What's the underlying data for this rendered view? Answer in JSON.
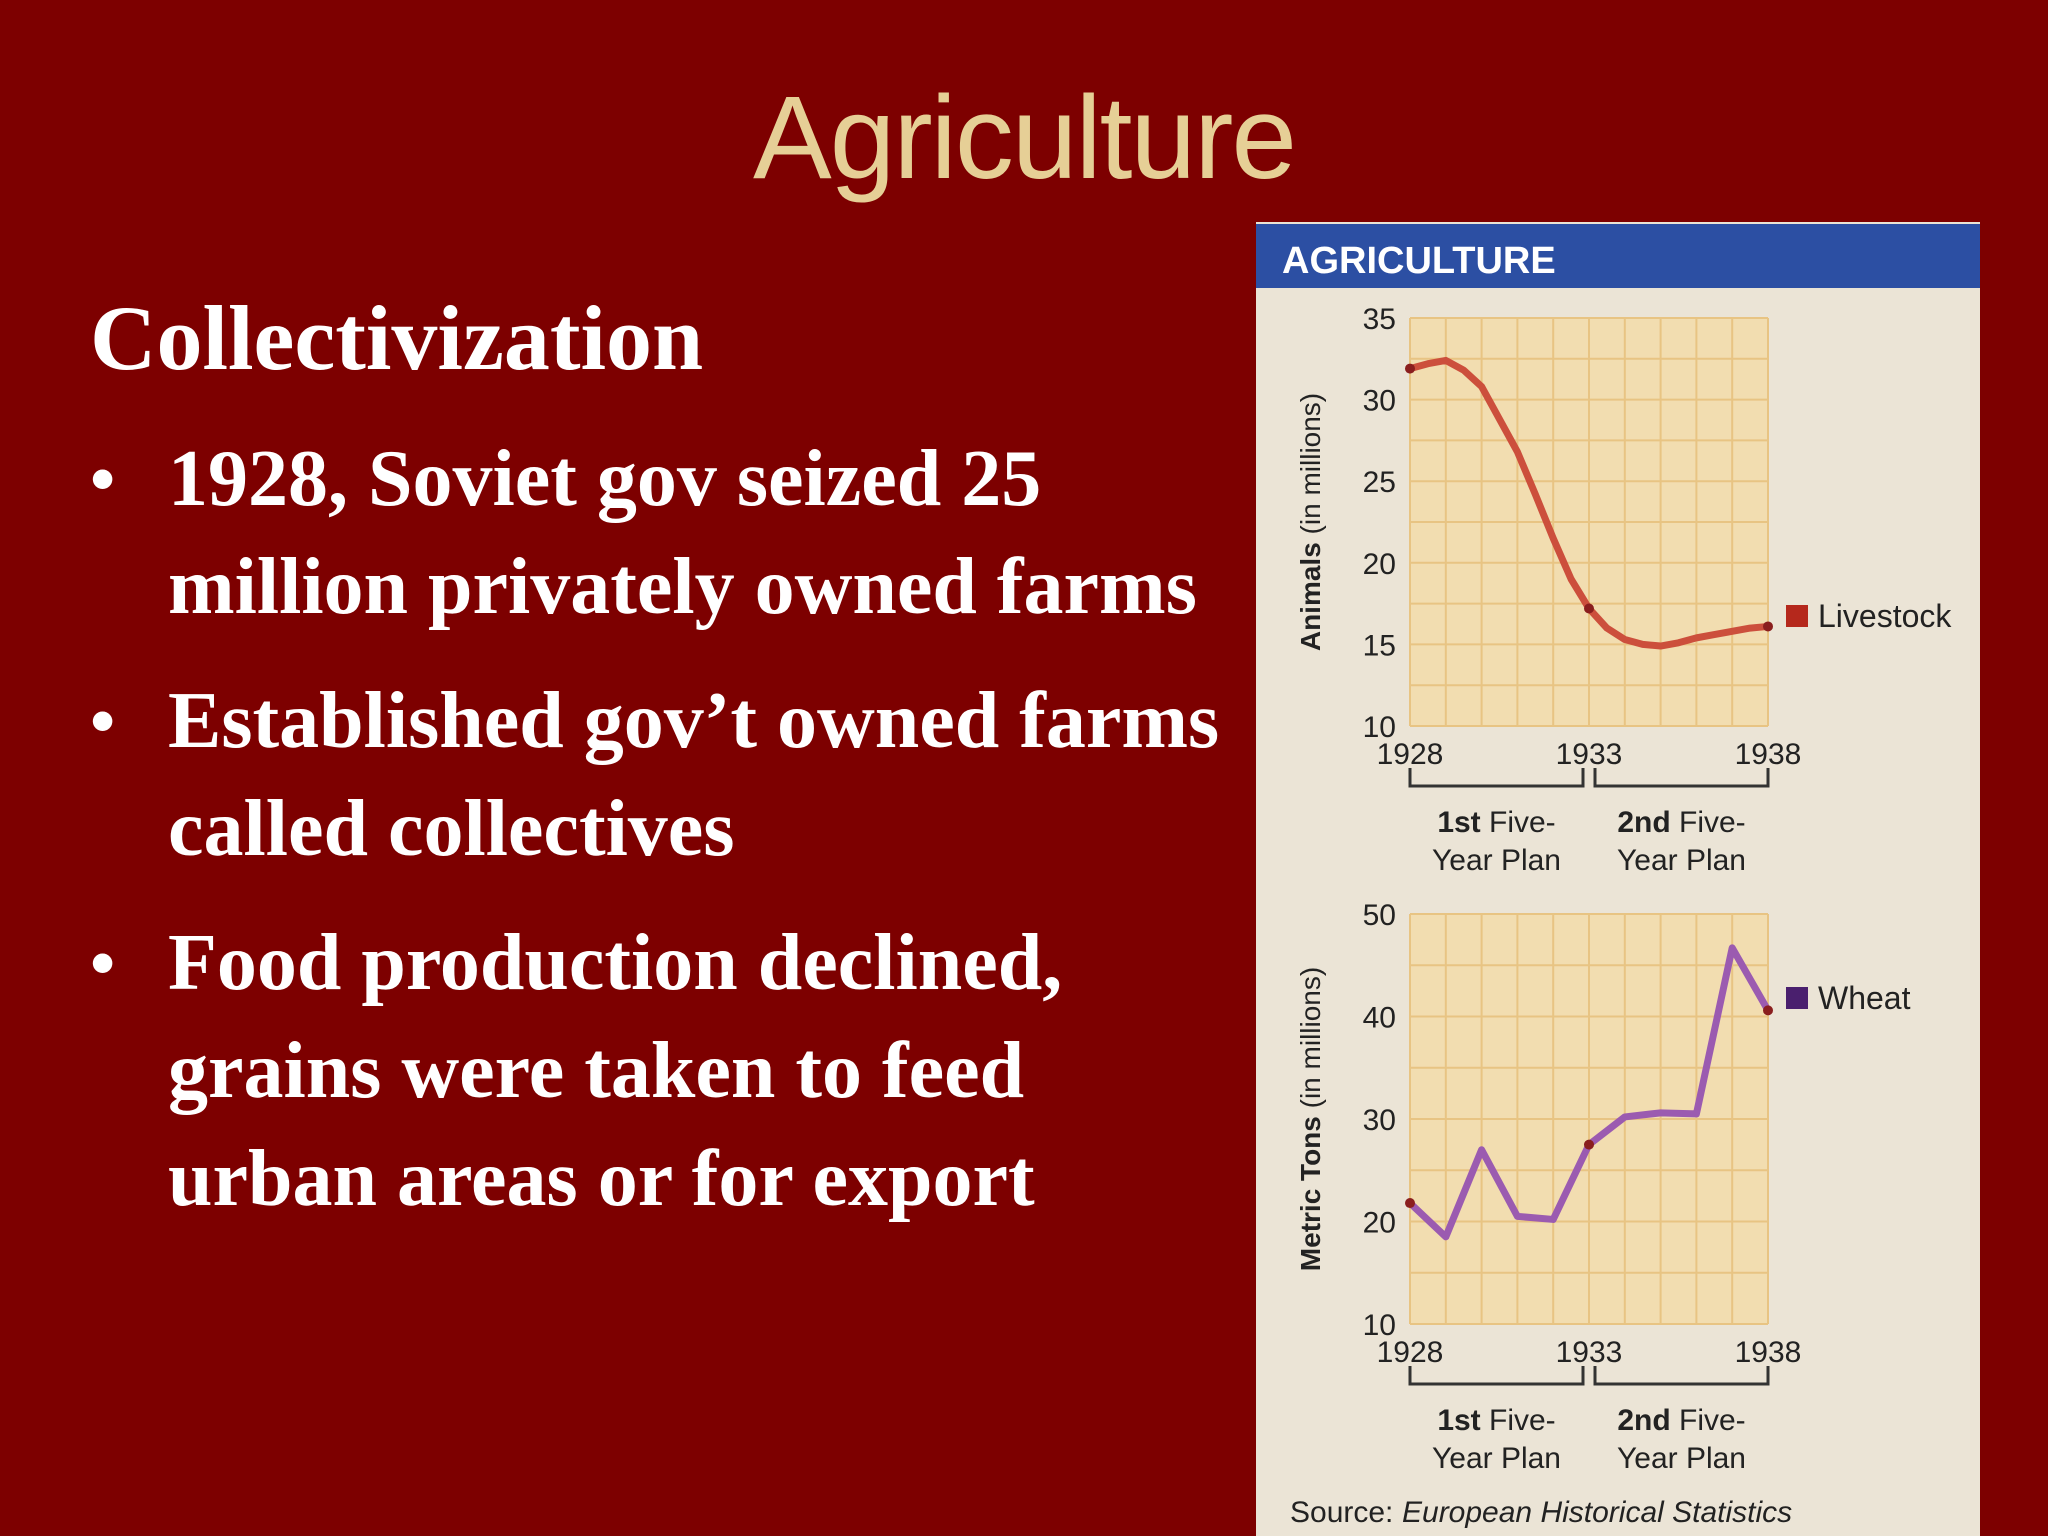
{
  "slide": {
    "title": "Agriculture",
    "subtitle": "Collectivization",
    "bullets": [
      "1928, Soviet gov seized 25 million privately owned farms",
      "Established gov’t owned farms called collectives",
      "Food production declined, grains were taken to feed urban areas or for export"
    ],
    "bullet_symbol": "•"
  },
  "panel": {
    "header": "AGRICULTURE",
    "source_label": "Source:",
    "source_title": "European Historical Statistics"
  },
  "colors": {
    "background": "#7d0000",
    "title": "#e6cf96",
    "header_bar": "#2c4fa3",
    "livestock": "#cc4f3c",
    "wheat": "#9b5bb0"
  },
  "chart_data": [
    {
      "type": "line",
      "ylabel_bold": "Animals",
      "ylabel_rest": "(in millions)",
      "ylim": [
        10,
        35
      ],
      "yticks": [
        10,
        15,
        20,
        25,
        30,
        35
      ],
      "xlim": [
        1928,
        1938
      ],
      "xticks": [
        1928,
        1933,
        1938
      ],
      "grid": true,
      "series": [
        {
          "name": "Livestock",
          "x": [
            1928,
            1928.5,
            1929,
            1929.5,
            1930,
            1930.5,
            1931,
            1931.5,
            1932,
            1932.5,
            1933,
            1933.5,
            1934,
            1934.5,
            1935,
            1935.5,
            1936,
            1936.5,
            1937,
            1937.5,
            1938
          ],
          "y": [
            31.9,
            32.2,
            32.4,
            31.8,
            30.8,
            28.8,
            26.8,
            24.2,
            21.5,
            19.0,
            17.2,
            16.0,
            15.3,
            15.0,
            14.9,
            15.1,
            15.4,
            15.6,
            15.8,
            16.0,
            16.1
          ]
        }
      ],
      "plans": [
        {
          "bold": "1st",
          "rest": " Five-",
          "line2": "Year Plan"
        },
        {
          "bold": "2nd",
          "rest": " Five-",
          "line2": "Year Plan"
        }
      ]
    },
    {
      "type": "line",
      "ylabel_bold": "Metric Tons",
      "ylabel_rest": "(in millions)",
      "ylim": [
        10,
        50
      ],
      "yticks": [
        10,
        20,
        30,
        40,
        50
      ],
      "xlim": [
        1928,
        1938
      ],
      "xticks": [
        1928,
        1933,
        1938
      ],
      "grid": true,
      "series": [
        {
          "name": "Wheat",
          "x": [
            1928,
            1929,
            1930,
            1931,
            1932,
            1933,
            1934,
            1935,
            1936,
            1937,
            1938
          ],
          "y": [
            21.8,
            18.5,
            27.0,
            20.5,
            20.2,
            27.5,
            30.2,
            30.6,
            30.5,
            46.7,
            40.6
          ]
        }
      ],
      "plans": [
        {
          "bold": "1st",
          "rest": " Five-",
          "line2": "Year Plan"
        },
        {
          "bold": "2nd",
          "rest": " Five-",
          "line2": "Year Plan"
        }
      ]
    }
  ]
}
